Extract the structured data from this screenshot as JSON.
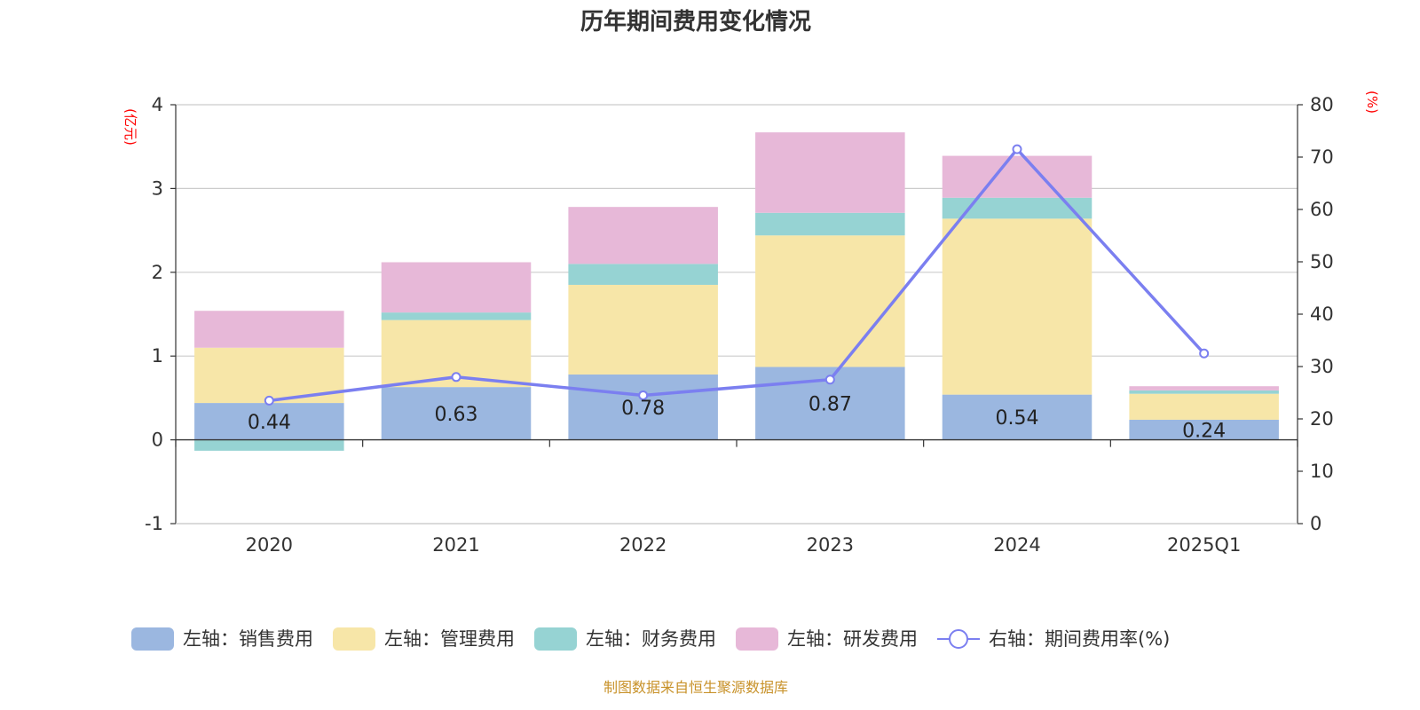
{
  "chart_data": {
    "type": "bar",
    "title": "历年期间费用变化情况",
    "categories": [
      "2020",
      "2021",
      "2022",
      "2023",
      "2024",
      "2025Q1"
    ],
    "left_axis": {
      "unit": "(亿元)",
      "ylim": [
        -1,
        4
      ],
      "ticks": [
        -1,
        0,
        1,
        2,
        3,
        4
      ]
    },
    "right_axis": {
      "unit": "(%)",
      "ylim": [
        0,
        80
      ],
      "ticks": [
        0,
        10,
        20,
        30,
        40,
        50,
        60,
        70,
        80
      ]
    },
    "series": [
      {
        "name": "左轴：销售费用",
        "axis": "left",
        "kind": "bar",
        "color": "#9bb7e0",
        "values": [
          0.44,
          0.63,
          0.78,
          0.87,
          0.54,
          0.24
        ],
        "labels": [
          "0.44",
          "0.63",
          "0.78",
          "0.87",
          "0.54",
          "0.24"
        ]
      },
      {
        "name": "左轴：管理费用",
        "axis": "left",
        "kind": "bar",
        "color": "#f7e6a8",
        "values": [
          0.66,
          0.8,
          1.07,
          1.57,
          2.1,
          0.31
        ]
      },
      {
        "name": "左轴：财务费用",
        "axis": "left",
        "kind": "bar",
        "color": "#96d3d3",
        "values": [
          -0.13,
          0.09,
          0.25,
          0.27,
          0.25,
          0.04
        ]
      },
      {
        "name": "左轴：研发费用",
        "axis": "left",
        "kind": "bar",
        "color": "#e7b8d8",
        "values": [
          0.44,
          0.6,
          0.68,
          0.96,
          0.5,
          0.05
        ]
      },
      {
        "name": "右轴：期间费用率(%)",
        "axis": "right",
        "kind": "line",
        "color": "#7b7ff0",
        "values": [
          23.5,
          28.0,
          24.5,
          27.5,
          71.5,
          32.5
        ]
      }
    ],
    "grid": true,
    "legend_position": "bottom"
  },
  "source": "制图数据来自恒生聚源数据库"
}
